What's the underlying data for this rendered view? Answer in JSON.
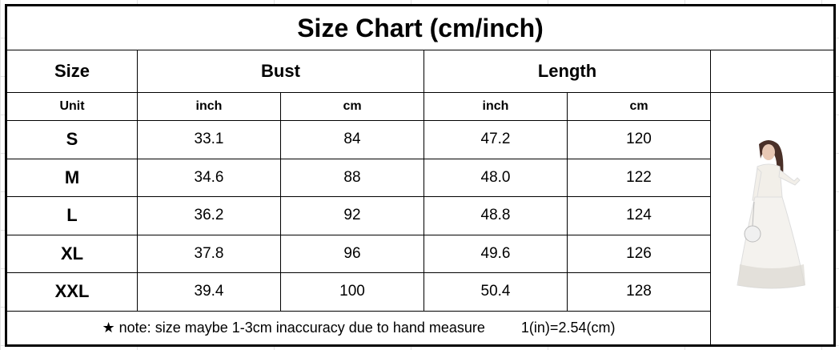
{
  "title": "Size Chart (cm/inch)",
  "headers": {
    "size": "Size",
    "bust": "Bust",
    "length": "Length"
  },
  "units": {
    "label": "Unit",
    "bust_inch": "inch",
    "bust_cm": "cm",
    "length_inch": "inch",
    "length_cm": "cm"
  },
  "rows": [
    {
      "size": "S",
      "bust_inch": "33.1",
      "bust_cm": "84",
      "length_inch": "47.2",
      "length_cm": "120"
    },
    {
      "size": "M",
      "bust_inch": "34.6",
      "bust_cm": "88",
      "length_inch": "48.0",
      "length_cm": "122"
    },
    {
      "size": "L",
      "bust_inch": "36.2",
      "bust_cm": "92",
      "length_inch": "48.8",
      "length_cm": "124"
    },
    {
      "size": "XL",
      "bust_inch": "37.8",
      "bust_cm": "96",
      "length_inch": "49.6",
      "length_cm": "126"
    },
    {
      "size": "XXL",
      "bust_inch": "39.4",
      "bust_cm": "100",
      "length_inch": "50.4",
      "length_cm": "128"
    }
  ],
  "note": {
    "text": "★ note: size maybe 1-3cm inaccuracy due to hand measure",
    "conversion": "1(in)=2.54(cm)"
  },
  "image": {
    "subject": "white lace maxi dress product photo"
  }
}
